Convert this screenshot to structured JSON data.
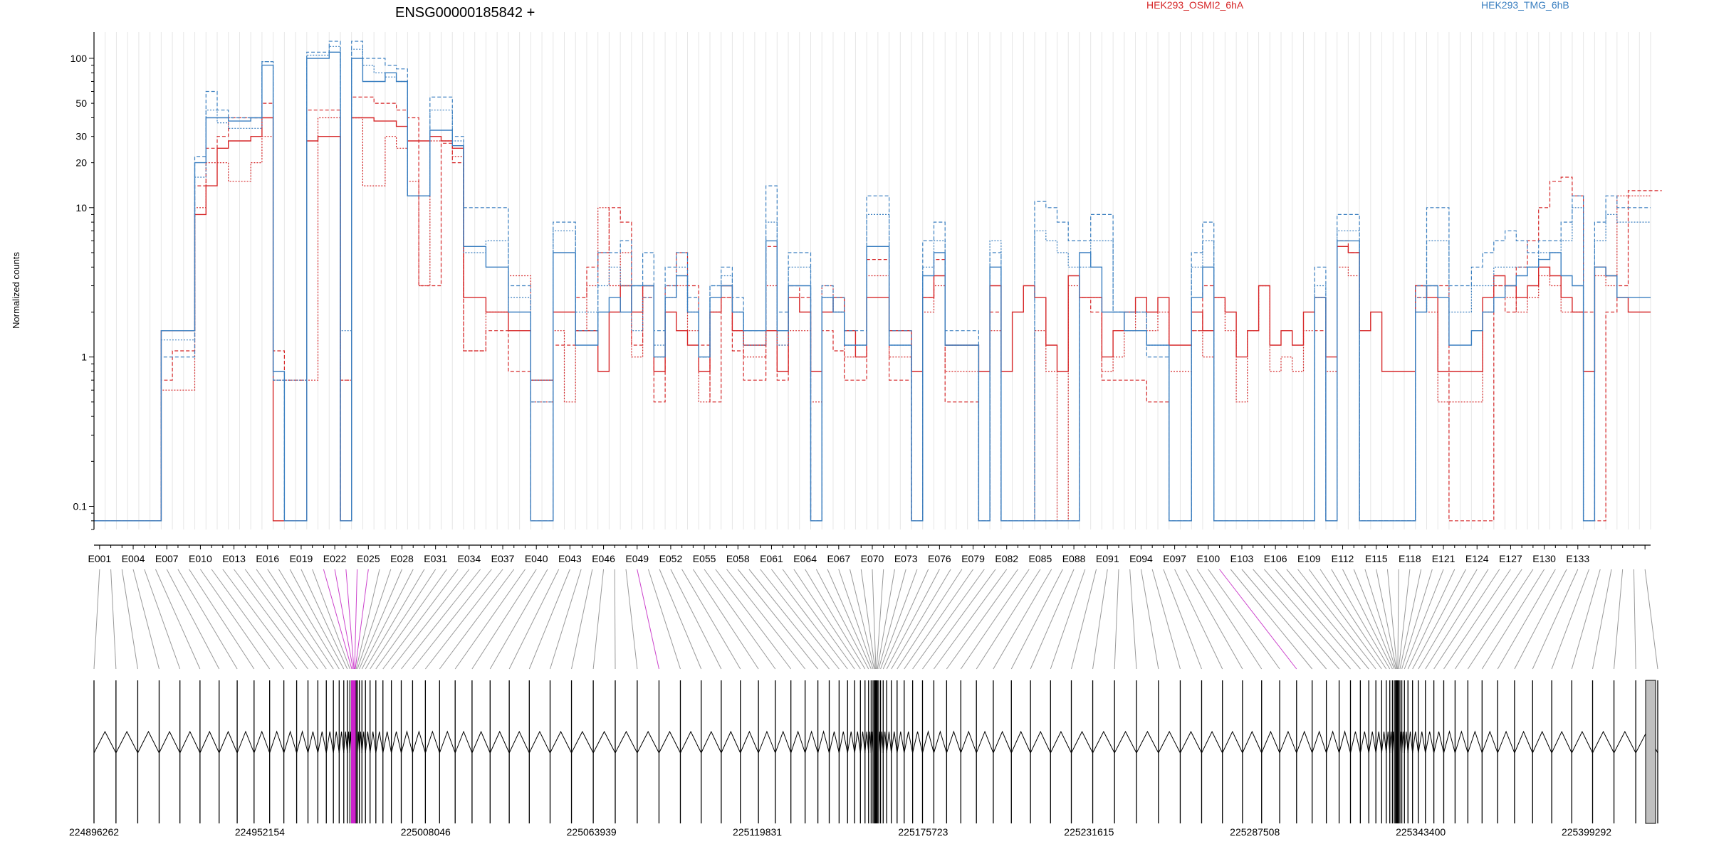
{
  "chart_data": {
    "type": "line",
    "title": "ENSG00000185842 +",
    "ylabel": "Normalized counts",
    "yscale": "log",
    "ylim": [
      0.07,
      150
    ],
    "y_ticks": [
      0.1,
      1,
      10,
      20,
      30,
      50,
      100
    ],
    "x_tick_labels": [
      "E001",
      "E004",
      "E007",
      "E010",
      "E013",
      "E016",
      "E019",
      "E022",
      "E025",
      "E028",
      "E031",
      "E034",
      "E037",
      "E040",
      "E043",
      "E046",
      "E049",
      "E052",
      "E055",
      "E058",
      "E061",
      "E064",
      "E067",
      "E070",
      "E073",
      "E076",
      "E079",
      "E082",
      "E085",
      "E088",
      "E091",
      "E094",
      "E097",
      "E100",
      "E103",
      "E106",
      "E109",
      "E112",
      "E115",
      "E118",
      "E121",
      "E124",
      "E127",
      "E130",
      "E133"
    ],
    "genomic_coordinates": [
      "224896262",
      "224952154",
      "225008046",
      "225063939",
      "225119831",
      "225175723",
      "225231615",
      "225287508",
      "225343400",
      "225399292"
    ],
    "legend": [
      {
        "name": "HEK293_OSMI2_6hA",
        "color": "#d62728"
      },
      {
        "name": "HEK293_TMG_6hB",
        "color": "#3a7fc0"
      }
    ],
    "series": [
      {
        "group": "HEK293_OSMI2_6hA",
        "style": "solid",
        "color": "#d62728",
        "values": [
          0.08,
          0.08,
          0.08,
          0.08,
          0.08,
          0.08,
          1.5,
          1.5,
          1.5,
          9,
          14,
          25,
          28,
          28,
          30,
          40,
          0.08,
          0.08,
          0.08,
          28,
          30,
          30,
          0.08,
          40,
          40,
          38,
          38,
          35,
          28,
          28,
          30,
          28,
          25,
          2.5,
          2.5,
          2,
          2,
          1.5,
          1.5,
          0.7,
          0.7,
          2,
          2,
          1.5,
          1.5,
          0.8,
          2,
          3,
          2,
          3,
          0.8,
          2,
          1.5,
          1.2,
          0.8,
          2,
          3,
          1.5,
          1.2,
          1.2,
          1.5,
          0.8,
          2.5,
          2,
          0.8,
          2,
          2.5,
          1.5,
          1,
          2.5,
          2.5,
          1.5,
          1.5,
          0.8,
          2.5,
          3.5,
          1.2,
          1.2,
          1.2,
          0.8,
          3,
          0.8,
          2,
          3,
          2.5,
          1.2,
          0.8,
          3.5,
          2.5,
          2.5,
          1,
          1.5,
          2,
          2.5,
          2,
          2.5,
          1.2,
          1.2,
          2,
          1.5,
          2.5,
          2,
          1,
          1.5,
          3,
          1.2,
          1.5,
          1.2,
          2,
          2.5,
          1,
          5.5,
          5,
          1.5,
          2,
          0.8,
          0.8,
          0.8,
          3,
          2.5,
          0.8,
          0.8,
          0.8,
          0.8,
          2.5,
          3.5,
          3,
          2.5,
          3,
          4,
          3.5,
          2.5,
          2,
          0.8,
          4,
          3.5,
          2.5,
          2,
          2
        ]
      },
      {
        "group": "HEK293_OSMI2_6hA",
        "style": "dashed",
        "color": "#d62728",
        "values": [
          0.08,
          0.08,
          0.08,
          0.08,
          0.08,
          0.08,
          0.7,
          1.1,
          1.1,
          14,
          25,
          30,
          40,
          40,
          40,
          50,
          1.1,
          0.7,
          0.7,
          45,
          45,
          45,
          0.7,
          55,
          55,
          50,
          50,
          45,
          40,
          3,
          3,
          27,
          20,
          1.1,
          1.1,
          1.5,
          1.5,
          0.8,
          0.8,
          0.08,
          0.08,
          1.2,
          1.2,
          2.5,
          4,
          5,
          10,
          8,
          1.2,
          2.5,
          0.5,
          3,
          5,
          3,
          1.2,
          0.5,
          2.5,
          1.1,
          0.7,
          0.7,
          5.5,
          0.7,
          3,
          2.5,
          0.08,
          1.5,
          1.1,
          0.7,
          0.7,
          4.5,
          4.5,
          0.7,
          0.7,
          0.08,
          2.5,
          4.5,
          0.5,
          0.5,
          0.5,
          0.08,
          2,
          0.08,
          0.08,
          0.08,
          0.08,
          0.08,
          0.08,
          0.08,
          2.5,
          2,
          0.7,
          0.7,
          0.7,
          0.7,
          0.5,
          0.5,
          0.08,
          0.08,
          1.5,
          3,
          0.08,
          0.08,
          0.08,
          0.08,
          0.08,
          0.08,
          0.08,
          0.08,
          0.08,
          1.5,
          0.08,
          6,
          5,
          0.08,
          0.08,
          0.08,
          0.08,
          0.08,
          2.5,
          3,
          3,
          0.08,
          0.08,
          0.08,
          0.08,
          3,
          2,
          4,
          6,
          10,
          15,
          16,
          12,
          2,
          0.08,
          2,
          3,
          13,
          13,
          13
        ]
      },
      {
        "group": "HEK293_OSMI2_6hA",
        "style": "dotted",
        "color": "#d62728",
        "values": [
          0.08,
          0.08,
          0.08,
          0.08,
          0.08,
          0.08,
          0.6,
          0.6,
          0.6,
          10,
          20,
          20,
          15,
          15,
          20,
          30,
          0.7,
          0.7,
          0.7,
          0.7,
          40,
          40,
          0.7,
          40,
          14,
          14,
          30,
          25,
          15,
          3,
          28,
          28,
          22,
          1.1,
          1.1,
          2,
          2,
          3.5,
          3.5,
          0.5,
          0.5,
          1.5,
          0.5,
          1.5,
          3,
          10,
          3,
          5,
          1,
          3,
          1,
          2.5,
          3,
          1.5,
          0.5,
          2,
          2.5,
          1.5,
          1,
          1,
          3,
          1.2,
          1.5,
          1.5,
          0.5,
          3,
          2,
          1,
          1,
          3.5,
          3.5,
          1,
          1,
          0.08,
          2,
          3,
          0.8,
          0.8,
          0.8,
          0.08,
          1.5,
          0.08,
          0.08,
          0.08,
          1.5,
          0.8,
          0.08,
          3,
          2.5,
          2.5,
          0.8,
          1,
          1.5,
          2,
          1.5,
          2,
          0.8,
          0.8,
          1.5,
          1,
          2.5,
          1.5,
          0.5,
          1.5,
          3,
          0.8,
          1,
          0.8,
          1.5,
          2.5,
          0.8,
          4,
          3.5,
          0.08,
          0.08,
          0.08,
          0.08,
          0.08,
          2.5,
          2,
          0.5,
          0.5,
          0.5,
          0.5,
          2,
          3,
          2.5,
          2,
          2.5,
          3.5,
          3,
          2,
          2,
          0.08,
          3.5,
          3,
          12,
          12,
          12
        ]
      },
      {
        "group": "HEK293_TMG_6hB",
        "style": "solid",
        "color": "#3a7fc0",
        "values": [
          0.08,
          0.08,
          0.08,
          0.08,
          0.08,
          0.08,
          1.5,
          1.5,
          1.5,
          20,
          40,
          40,
          38,
          38,
          40,
          90,
          0.8,
          0.08,
          0.08,
          100,
          100,
          110,
          0.08,
          100,
          70,
          70,
          80,
          70,
          12,
          12,
          33,
          33,
          26,
          5.5,
          5.5,
          4,
          4,
          2,
          2,
          0.08,
          0.08,
          5,
          5,
          1.2,
          1.2,
          2,
          2.5,
          2,
          3,
          3,
          1,
          2.5,
          3.5,
          2,
          1,
          2.5,
          3,
          2,
          1.5,
          1.5,
          6,
          1.5,
          3,
          3,
          0.08,
          2.5,
          2,
          1.2,
          1.2,
          5.5,
          5.5,
          1.2,
          1.2,
          0.08,
          3.5,
          5,
          1.2,
          1.2,
          1.2,
          0.08,
          4,
          0.08,
          0.08,
          0.08,
          0.08,
          0.08,
          0.08,
          0.08,
          5,
          4,
          2,
          2,
          1.5,
          1.5,
          1.2,
          1.2,
          0.08,
          0.08,
          2.5,
          4,
          0.08,
          0.08,
          0.08,
          0.08,
          0.08,
          0.08,
          0.08,
          0.08,
          0.08,
          2.5,
          0.08,
          6,
          6,
          0.08,
          0.08,
          0.08,
          0.08,
          0.08,
          2,
          3,
          2.5,
          1.2,
          1.2,
          1.5,
          2,
          2.5,
          3,
          3.5,
          4,
          4.5,
          5,
          3.5,
          3,
          0.08,
          4,
          3.5,
          2.5,
          2.5,
          2.5
        ]
      },
      {
        "group": "HEK293_TMG_6hB",
        "style": "dashed",
        "color": "#3a7fc0",
        "values": [
          0.08,
          0.08,
          0.08,
          0.08,
          0.08,
          0.08,
          1,
          1,
          1,
          22,
          60,
          45,
          40,
          40,
          40,
          95,
          0.7,
          0.08,
          0.08,
          110,
          110,
          130,
          0.08,
          130,
          100,
          100,
          90,
          85,
          12,
          12,
          55,
          55,
          30,
          10,
          10,
          10,
          10,
          3,
          3,
          0.5,
          0.5,
          8,
          8,
          1.5,
          1.5,
          5,
          5,
          6,
          3,
          5,
          1.5,
          4,
          5,
          2.5,
          1,
          3,
          4,
          2.5,
          1.5,
          1.5,
          14,
          2,
          5,
          5,
          0.08,
          3,
          2.5,
          1.5,
          1.5,
          12,
          12,
          1.5,
          1.5,
          0.08,
          6,
          8,
          1.5,
          1.5,
          1.5,
          0.08,
          5,
          0.08,
          0.08,
          0.08,
          11,
          10,
          8,
          6,
          6,
          9,
          9,
          2,
          2,
          2,
          1,
          1,
          0.08,
          0.08,
          5,
          8,
          0.08,
          0.08,
          0.08,
          0.08,
          0.08,
          0.08,
          0.08,
          0.08,
          0.08,
          4,
          0.08,
          9,
          9,
          0.08,
          0.08,
          0.08,
          0.08,
          0.08,
          3,
          10,
          10,
          3,
          3,
          4,
          5,
          6,
          7,
          6,
          5,
          6,
          6,
          8,
          12,
          0.08,
          8,
          12,
          10,
          10,
          10
        ]
      },
      {
        "group": "HEK293_TMG_6hB",
        "style": "dotted",
        "color": "#3a7fc0",
        "values": [
          0.08,
          0.08,
          0.08,
          0.08,
          0.08,
          0.08,
          1.3,
          1.3,
          1.3,
          16,
          45,
          37,
          34,
          34,
          34,
          95,
          0.7,
          0.7,
          0.7,
          105,
          105,
          120,
          1.5,
          115,
          90,
          80,
          75,
          70,
          12,
          12,
          45,
          45,
          28,
          5,
          5,
          6,
          6,
          2.5,
          2.5,
          0.7,
          0.7,
          7,
          7,
          2,
          2,
          3,
          4,
          3,
          1.5,
          2.5,
          1.2,
          3,
          4,
          2,
          1,
          3,
          3.5,
          2,
          1.2,
          1.2,
          8,
          1.2,
          4,
          4,
          0.08,
          2.5,
          2,
          1.2,
          1.2,
          9,
          9,
          1.2,
          1.2,
          0.08,
          4,
          6,
          1.2,
          1.2,
          1.2,
          0.08,
          6,
          0.08,
          0.08,
          0.08,
          7,
          6,
          5,
          4,
          4,
          6,
          6,
          2,
          2,
          2,
          1.2,
          1.2,
          0.08,
          0.08,
          4,
          6,
          0.08,
          0.08,
          0.08,
          0.08,
          0.08,
          0.08,
          0.08,
          0.08,
          0.08,
          3,
          0.08,
          7,
          7,
          0.08,
          0.08,
          0.08,
          0.08,
          0.08,
          2.5,
          6,
          6,
          2,
          2,
          3,
          3,
          4,
          4,
          4,
          4,
          5,
          5,
          6,
          10,
          0.08,
          6,
          9,
          8,
          8,
          8
        ]
      }
    ]
  }
}
